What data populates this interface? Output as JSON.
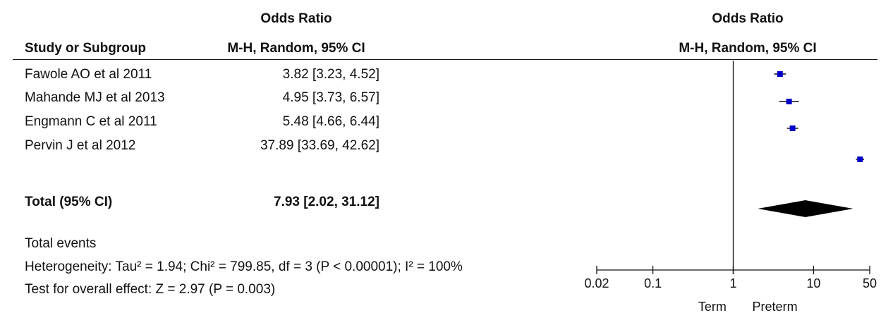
{
  "headers": {
    "study": "Study or Subgroup",
    "or_title": "Odds Ratio",
    "or_method": "M-H, Random, 95% CI",
    "plot_title": "Odds Ratio",
    "plot_method": "M-H, Random, 95% CI"
  },
  "studies": [
    {
      "name": "Fawole AO et al 2011",
      "ci_text": "3.82 [3.23, 4.52]"
    },
    {
      "name": "Mahande MJ et al 2013",
      "ci_text": "4.95 [3.73, 6.57]"
    },
    {
      "name": "Engmann C et al 2011",
      "ci_text": "5.48 [4.66, 6.44]"
    },
    {
      "name": "Pervin J et al 2012",
      "ci_text": "37.89 [33.69, 42.62]"
    }
  ],
  "total": {
    "label": "Total (95% CI)",
    "ci_text": "7.93 [2.02, 31.12]"
  },
  "footer": {
    "events": "Total events",
    "heterogeneity": "Heterogeneity: Tau² = 1.94; Chi² = 799.85, df = 3 (P < 0.00001); I² = 100%",
    "overall": "Test for overall effect: Z = 2.97 (P = 0.003)"
  },
  "axis_labels": {
    "left": "Term",
    "right": "Preterm"
  },
  "colors": {
    "study_marker": "#0000c8",
    "total_diamond": "#000000",
    "line": "#111111"
  },
  "chart_data": {
    "type": "forest",
    "x_scale": "log",
    "xlim": [
      0.02,
      50
    ],
    "x_ticks": [
      0.02,
      0.1,
      1,
      10,
      50
    ],
    "x_tick_labels": [
      "0.02",
      "0.1",
      "1",
      "10",
      "50"
    ],
    "null_line": 1,
    "series": [
      {
        "label": "Fawole AO et al 2011",
        "or": 3.82,
        "lower": 3.23,
        "upper": 4.52
      },
      {
        "label": "Mahande MJ et al 2013",
        "or": 4.95,
        "lower": 3.73,
        "upper": 6.57
      },
      {
        "label": "Engmann C et al 2011",
        "or": 5.48,
        "lower": 4.66,
        "upper": 6.44
      },
      {
        "label": "Pervin J et al 2012",
        "or": 37.89,
        "lower": 33.69,
        "upper": 42.62
      }
    ],
    "pooled": {
      "label": "Total (95% CI)",
      "or": 7.93,
      "lower": 2.02,
      "upper": 31.12
    },
    "xlabel_left": "Term",
    "xlabel_right": "Preterm"
  }
}
